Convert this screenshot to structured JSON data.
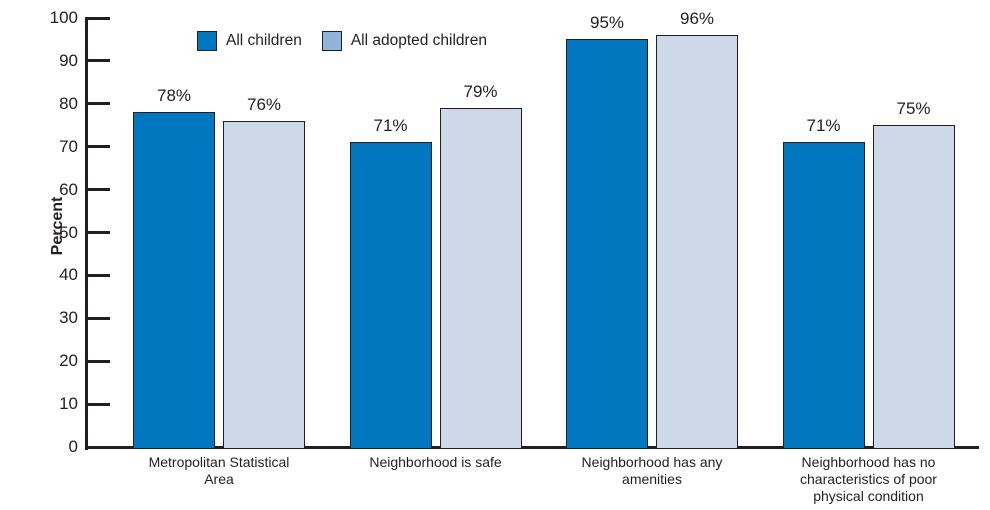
{
  "chart_data": {
    "type": "bar",
    "ylabel": "Percent",
    "ylim": [
      0,
      100
    ],
    "yticks": [
      0,
      10,
      20,
      30,
      40,
      50,
      60,
      70,
      80,
      90,
      100
    ],
    "value_suffix": "%",
    "grid": false,
    "legend_position": "top-left",
    "axis_color": "#231F20",
    "text_color": "#231F20",
    "background": "#FFFFFF",
    "categories": [
      "Metropolitan Statistical\nArea",
      "Neighborhood is safe",
      "Neighborhood has any\namenities",
      "Neighborhood has no\ncharacteristics of poor\nphysical condition"
    ],
    "series": [
      {
        "name": "All children",
        "color": "#0077BE",
        "legend_color": "#0077BE",
        "values": [
          78,
          71,
          95,
          71
        ]
      },
      {
        "name": "All adopted children",
        "color": "#CDD8E9",
        "legend_color": "#8FB4DC",
        "values": [
          76,
          79,
          96,
          75
        ]
      }
    ]
  }
}
